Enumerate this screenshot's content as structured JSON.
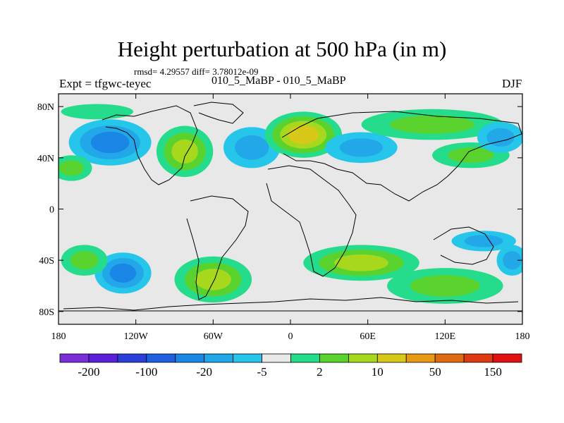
{
  "chart_data": {
    "type": "heatmap",
    "title": "Height perturbation at 500 hPa (in m)",
    "stats_text": "rmsd= 4.29557 diff= 3.78012e-09",
    "experiment_label": "Expt = tfgwc-teyec",
    "center_label": "010_5_MaBP - 010_5_MaBP",
    "season": "DJF",
    "xlim": [
      -180,
      180
    ],
    "ylim": [
      -90,
      90
    ],
    "x_ticks": [
      {
        "value": -180,
        "label": "180"
      },
      {
        "value": -120,
        "label": "120W"
      },
      {
        "value": -60,
        "label": "60W"
      },
      {
        "value": 0,
        "label": "0"
      },
      {
        "value": 60,
        "label": "60E"
      },
      {
        "value": 120,
        "label": "120E"
      },
      {
        "value": 180,
        "label": "180"
      }
    ],
    "y_ticks": [
      {
        "value": 80,
        "label": "80N"
      },
      {
        "value": 40,
        "label": "40N"
      },
      {
        "value": 0,
        "label": "0"
      },
      {
        "value": -40,
        "label": "40S"
      },
      {
        "value": -80,
        "label": "80S"
      }
    ],
    "colorbar": {
      "colors": [
        "#7a2ed8",
        "#5a1fd8",
        "#2a3fd8",
        "#2060e0",
        "#1a86e6",
        "#22a8e8",
        "#26c6ea",
        "#e8e8e8",
        "#24dc8c",
        "#5ad22e",
        "#a8d81e",
        "#d8c818",
        "#e89a14",
        "#e06a10",
        "#dc3a10",
        "#e01010"
      ],
      "labels": [
        {
          "after_index": 0,
          "label": "-200"
        },
        {
          "after_index": 2,
          "label": "-100"
        },
        {
          "after_index": 4,
          "label": "-20"
        },
        {
          "after_index": 6,
          "label": "-5"
        },
        {
          "after_index": 8,
          "label": "2"
        },
        {
          "after_index": 10,
          "label": "10"
        },
        {
          "after_index": 12,
          "label": "50"
        },
        {
          "after_index": 14,
          "label": "150"
        }
      ]
    },
    "anomaly_centers": [
      {
        "lon": -140,
        "lat": 52,
        "value": -20,
        "rx": 32,
        "ry": 18
      },
      {
        "lon": -82,
        "lat": 45,
        "value": 12,
        "rx": 22,
        "ry": 20
      },
      {
        "lon": -170,
        "lat": 32,
        "value": 6,
        "rx": 16,
        "ry": 10
      },
      {
        "lon": -30,
        "lat": 48,
        "value": -8,
        "rx": 22,
        "ry": 16
      },
      {
        "lon": 10,
        "lat": 58,
        "value": 25,
        "rx": 30,
        "ry": 18
      },
      {
        "lon": 55,
        "lat": 48,
        "value": -10,
        "rx": 28,
        "ry": 12
      },
      {
        "lon": 110,
        "lat": 66,
        "value": 6,
        "rx": 55,
        "ry": 12
      },
      {
        "lon": 140,
        "lat": 42,
        "value": 7,
        "rx": 30,
        "ry": 10
      },
      {
        "lon": 163,
        "lat": 56,
        "value": -9,
        "rx": 18,
        "ry": 12
      },
      {
        "lon": -150,
        "lat": 76,
        "value": 4,
        "rx": 28,
        "ry": 6
      },
      {
        "lon": -130,
        "lat": -50,
        "value": -20,
        "rx": 22,
        "ry": 16
      },
      {
        "lon": -60,
        "lat": -55,
        "value": 12,
        "rx": 30,
        "ry": 18
      },
      {
        "lon": 55,
        "lat": -42,
        "value": 18,
        "rx": 45,
        "ry": 14
      },
      {
        "lon": 120,
        "lat": -60,
        "value": 9,
        "rx": 45,
        "ry": 14
      },
      {
        "lon": -160,
        "lat": -40,
        "value": 5,
        "rx": 18,
        "ry": 12
      },
      {
        "lon": 172,
        "lat": -40,
        "value": -9,
        "rx": 12,
        "ry": 12
      },
      {
        "lon": 150,
        "lat": -25,
        "value": -5,
        "rx": 25,
        "ry": 8
      }
    ]
  }
}
